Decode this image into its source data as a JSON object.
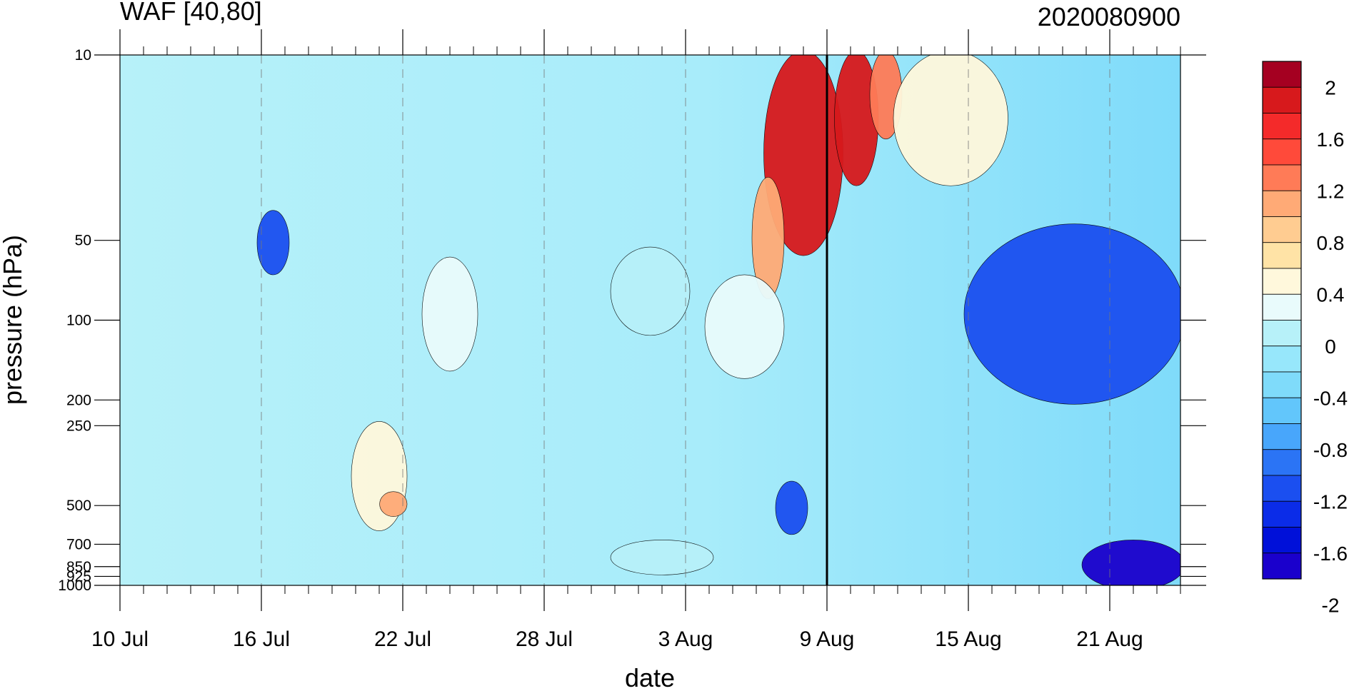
{
  "chart_data": {
    "type": "heatmap",
    "subtype": "filled-contour (time-pressure cross section)",
    "title_left": "WAF [40,80]",
    "title_right": "2020080900",
    "xlabel": "date",
    "ylabel": "pressure (hPa)",
    "x_tick_labels": [
      "10 Jul",
      "16 Jul",
      "22 Jul",
      "28 Jul",
      "3 Aug",
      "9 Aug",
      "15 Aug",
      "21 Aug"
    ],
    "x_tick_days": [
      0,
      6,
      12,
      18,
      24,
      30,
      36,
      42
    ],
    "x_range_days": [
      0,
      45
    ],
    "y_ticks": [
      10,
      50,
      100,
      200,
      250,
      500,
      700,
      850,
      925,
      1000
    ],
    "y_tick_labels": [
      "10",
      "50",
      "100",
      "200",
      "250",
      "500",
      "700",
      "850",
      "925",
      "1000"
    ],
    "y_scale": "log",
    "y_reversed": true,
    "y_range": [
      10,
      1000
    ],
    "vertical_marker_day": 30,
    "colorbar": {
      "label_levels": [
        2,
        1.6,
        1.2,
        0.8,
        0.4,
        0,
        -0.4,
        -0.8,
        -1.2,
        -1.6,
        -2
      ],
      "labels": [
        "2",
        "1.6",
        "1.2",
        "0.8",
        "0.4",
        "0",
        "-0.4",
        "-0.8",
        "-1.2",
        "-1.6",
        "-2"
      ],
      "colors_top_to_bottom": [
        "#a50021",
        "#d7191c",
        "#f42a2a",
        "#ff4a3a",
        "#ff7b57",
        "#ffaa76",
        "#ffcc91",
        "#ffe3a6",
        "#fff8dc",
        "#e9fbfc",
        "#b7f1f9",
        "#97e7fb",
        "#7fdbfa",
        "#62c6fb",
        "#48a6fb",
        "#2b74f5",
        "#1b4ff0",
        "#0b2ce8",
        "#0010d9",
        "#1a00cc"
      ]
    },
    "field": {
      "description": "wave activity flux anomaly; strong positive (>2) core 6-9 Aug, 10-50 hPa; weak negative elsewhere; negative maximum near surface 20-24 Aug",
      "cells": [
        {
          "d0": 27.5,
          "d1": 30.5,
          "p0": 10,
          "p1": 55,
          "v": 2.1
        },
        {
          "d0": 30.5,
          "d1": 32,
          "p0": 10,
          "p1": 30,
          "v": 2.1
        },
        {
          "d0": 32,
          "d1": 33,
          "p0": 10,
          "p1": 20,
          "v": 1.5
        },
        {
          "d0": 27,
          "d1": 28,
          "p0": 30,
          "p1": 80,
          "v": 1.3
        },
        {
          "d0": 33,
          "d1": 37.5,
          "p0": 10,
          "p1": 30,
          "v": 0.6
        },
        {
          "d0": 25,
          "d1": 28,
          "p0": 70,
          "p1": 160,
          "v": 0.5
        },
        {
          "d0": 13,
          "d1": 15,
          "p0": 60,
          "p1": 150,
          "v": 0.5
        },
        {
          "d0": 10,
          "d1": 12,
          "p0": 250,
          "p1": 600,
          "v": 0.6
        },
        {
          "d0": 11.2,
          "d1": 12,
          "p0": 460,
          "p1": 530,
          "v": 1.3
        },
        {
          "d0": 21,
          "d1": 24,
          "p0": 55,
          "p1": 110,
          "v": 0.2
        },
        {
          "d0": 21,
          "d1": 25,
          "p0": 700,
          "p1": 880,
          "v": 0.2
        },
        {
          "d0": 36,
          "d1": 45,
          "p0": 45,
          "p1": 200,
          "v": -1.0
        },
        {
          "d0": 41,
          "d1": 45,
          "p0": 700,
          "p1": 1000,
          "v": -1.8
        },
        {
          "d0": 6,
          "d1": 7,
          "p0": 40,
          "p1": 65,
          "v": -1.0
        },
        {
          "d0": 28,
          "d1": 29,
          "p0": 420,
          "p1": 620,
          "v": -1.0
        }
      ]
    }
  }
}
